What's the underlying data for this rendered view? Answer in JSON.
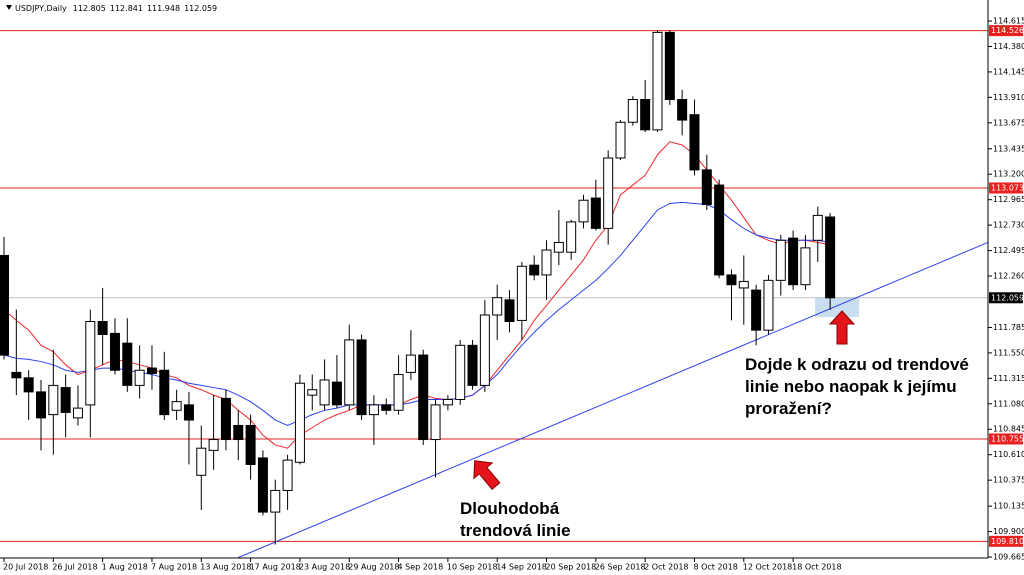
{
  "chart_data": {
    "type": "candlestick",
    "title": "USDJPY,Daily",
    "categories": [
      "20 Jul 2018",
      null,
      null,
      null,
      "26 Jul 2018",
      null,
      null,
      null,
      "1 Aug 2018",
      null,
      null,
      null,
      "7 Aug 2018",
      null,
      null,
      null,
      "13 Aug 2018",
      null,
      null,
      null,
      "17 Aug 2018",
      null,
      null,
      null,
      "23 Aug 2018",
      null,
      null,
      null,
      "29 Aug 2018",
      null,
      null,
      null,
      "4 Sep 2018",
      null,
      null,
      null,
      "10 Sep 2018",
      null,
      null,
      null,
      "14 Sep 2018",
      null,
      null,
      null,
      "20 Sep 2018",
      null,
      null,
      null,
      "26 Sep 2018",
      null,
      null,
      null,
      "2 Oct 2018",
      null,
      null,
      null,
      "8 Oct 2018",
      null,
      null,
      null,
      "12 Oct 2018",
      null,
      null,
      null,
      "18 Oct 2018",
      null,
      null,
      null
    ],
    "open": [
      112.45,
      111.37,
      111.32,
      111.19,
      110.98,
      111.23,
      110.95,
      111.07,
      111.84,
      111.73,
      111.64,
      111.25,
      111.41,
      111.39,
      111.02,
      111.07,
      110.42,
      110.65,
      111.13,
      110.88,
      110.88,
      110.58,
      110.08,
      110.28,
      110.54,
      111.16,
      111.07,
      111.28,
      111.07,
      111.67,
      110.98,
      111.07,
      111.02,
      111.37,
      111.53,
      110.75,
      111.07,
      111.12,
      111.62,
      111.25,
      111.9,
      112.04,
      111.85,
      112.36,
      112.27,
      112.48,
      112.48,
      112.76,
      112.98,
      112.7,
      113.35,
      113.68,
      113.89,
      113.61,
      114.51,
      113.89,
      113.75,
      113.24,
      113.1,
      112.27,
      112.15,
      112.13,
      111.76,
      112.22,
      112.61,
      112.18,
      112.59,
      112.805
    ],
    "high": [
      112.62,
      111.95,
      111.39,
      111.3,
      111.58,
      111.35,
      111.25,
      111.95,
      112.15,
      111.87,
      111.87,
      111.62,
      111.62,
      111.56,
      111.21,
      111.19,
      110.88,
      111.16,
      111.21,
      111.02,
      110.98,
      110.65,
      110.38,
      110.61,
      111.35,
      111.35,
      111.49,
      111.53,
      111.81,
      111.72,
      111.16,
      111.13,
      111.53,
      111.76,
      111.58,
      111.12,
      111.16,
      111.67,
      111.67,
      112.04,
      112.18,
      112.13,
      112.39,
      112.45,
      112.59,
      112.87,
      112.78,
      113.01,
      113.15,
      113.42,
      113.7,
      113.92,
      114.07,
      114.53,
      114.53,
      113.98,
      113.89,
      113.38,
      113.15,
      112.32,
      112.45,
      112.18,
      112.27,
      112.64,
      112.68,
      112.64,
      112.9,
      112.841
    ],
    "low": [
      111.49,
      111.16,
      110.93,
      110.65,
      110.61,
      110.77,
      110.88,
      110.77,
      111.44,
      111.35,
      111.19,
      111.13,
      111.21,
      110.93,
      110.93,
      110.52,
      110.1,
      110.47,
      110.65,
      110.56,
      110.38,
      110.05,
      109.78,
      110.1,
      110.52,
      111.02,
      111.02,
      111.04,
      111.02,
      110.93,
      110.7,
      110.98,
      110.98,
      111.3,
      110.7,
      110.4,
      111.02,
      111.07,
      111.21,
      111.19,
      111.67,
      111.74,
      111.67,
      112.22,
      112.04,
      112.36,
      112.41,
      112.7,
      112.68,
      112.55,
      113.33,
      113.65,
      113.59,
      113.59,
      113.84,
      113.56,
      113.19,
      112.87,
      112.24,
      111.85,
      111.81,
      111.62,
      111.72,
      112.08,
      112.13,
      112.13,
      112.39,
      111.948
    ],
    "close": [
      111.53,
      111.32,
      111.19,
      110.95,
      111.25,
      111.0,
      111.04,
      111.84,
      111.72,
      111.39,
      111.25,
      111.39,
      111.36,
      110.98,
      111.1,
      110.93,
      110.67,
      110.75,
      110.75,
      110.75,
      110.52,
      110.08,
      110.28,
      110.56,
      111.27,
      111.21,
      111.3,
      111.07,
      111.67,
      110.98,
      111.07,
      111.02,
      111.35,
      111.53,
      110.75,
      111.07,
      111.12,
      111.62,
      111.25,
      111.9,
      112.06,
      111.84,
      112.35,
      112.27,
      112.5,
      112.57,
      112.76,
      112.96,
      112.7,
      113.35,
      113.68,
      113.89,
      113.61,
      114.51,
      113.89,
      113.7,
      113.24,
      112.92,
      112.27,
      112.18,
      112.21,
      111.76,
      112.22,
      112.59,
      112.18,
      112.52,
      112.82,
      112.059
    ],
    "lines": [
      {
        "color": "#f0262a",
        "values": [
          111.95,
          111.85,
          111.76,
          111.62,
          111.56,
          111.44,
          111.35,
          111.39,
          111.44,
          111.49,
          111.47,
          111.44,
          111.41,
          111.35,
          111.32,
          111.25,
          111.21,
          111.16,
          111.12,
          111.02,
          110.93,
          110.79,
          110.7,
          110.67,
          110.79,
          110.86,
          110.93,
          110.98,
          111.02,
          111.07,
          111.07,
          111.07,
          111.07,
          111.12,
          111.16,
          111.13,
          111.12,
          111.13,
          111.16,
          111.25,
          111.39,
          111.53,
          111.67,
          111.85,
          111.99,
          112.13,
          112.27,
          112.41,
          112.59,
          112.73,
          113.01,
          113.1,
          113.19,
          113.38,
          113.5,
          113.47,
          113.38,
          113.24,
          113.1,
          112.96,
          112.8,
          112.64,
          112.59,
          112.55,
          112.59,
          112.59,
          112.57,
          112.55
        ]
      },
      {
        "color": "#2b3ff0",
        "values": [
          111.53,
          111.5,
          111.49,
          111.47,
          111.44,
          111.39,
          111.37,
          111.39,
          111.41,
          111.41,
          111.39,
          111.37,
          111.35,
          111.32,
          111.3,
          111.27,
          111.25,
          111.23,
          111.21,
          111.16,
          111.1,
          111.02,
          110.93,
          110.88,
          110.93,
          110.98,
          111.02,
          111.04,
          111.07,
          111.07,
          111.07,
          111.07,
          111.07,
          111.09,
          111.12,
          111.12,
          111.12,
          111.13,
          111.16,
          111.25,
          111.35,
          111.49,
          111.62,
          111.74,
          111.85,
          111.95,
          112.04,
          112.13,
          112.22,
          112.33,
          112.45,
          112.59,
          112.73,
          112.87,
          112.93,
          112.94,
          112.93,
          112.92,
          112.87,
          112.78,
          112.7,
          112.64,
          112.61,
          112.59,
          112.59,
          112.59,
          112.59,
          112.57
        ]
      }
    ],
    "trendline": {
      "color": "#2b3ff0",
      "x": [
        19,
        80
      ],
      "y": [
        109.66,
        112.58
      ]
    },
    "levels": [
      114.526,
      113.073,
      110.755,
      {
        "value": 109.81,
        "label": "109.810"
      }
    ],
    "level_color": "#e8201e",
    "ylim": [
      109.656,
      114.809
    ],
    "yticks": [
      114.615,
      {
        "value": 114.38,
        "label": "114.380"
      },
      114.145,
      {
        "value": 113.91,
        "label": "113.910"
      },
      113.675,
      113.435,
      {
        "value": 113.2,
        "label": "113.200"
      },
      112.965,
      {
        "value": 112.73,
        "label": "112.730"
      },
      112.495,
      {
        "value": 112.26,
        "label": "112.260"
      },
      111.785,
      {
        "value": 111.55,
        "label": "111.550"
      },
      111.315,
      {
        "value": 111.08,
        "label": "111.080"
      },
      110.845,
      {
        "value": 110.61,
        "label": "110.610"
      },
      110.375,
      110.135,
      {
        "value": 109.9,
        "label": "109.900"
      },
      109.665
    ],
    "grid": false,
    "annotations": [
      [
        "Dojde k odrazu od trendové",
        "linie nebo naopak k jejímu",
        "proražení?"
      ],
      [
        "Dlouhodobá",
        "trendová linie"
      ]
    ]
  }
}
